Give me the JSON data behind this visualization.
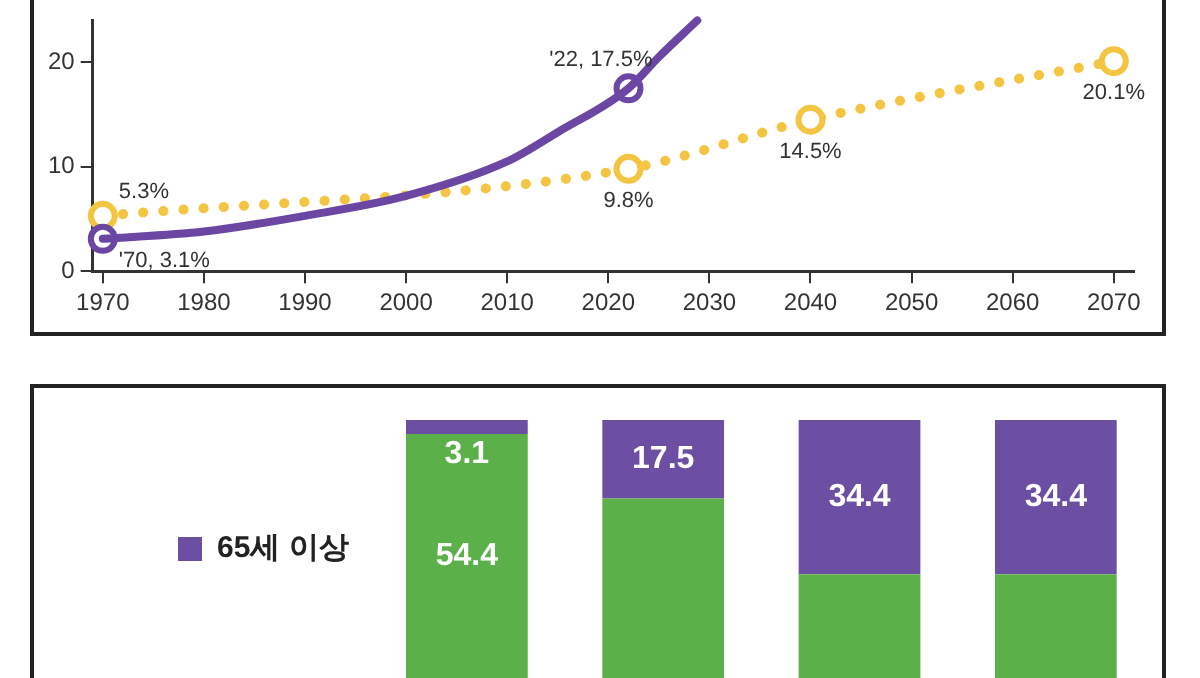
{
  "chart_data": [
    {
      "type": "line",
      "xlim": [
        1969,
        2072
      ],
      "xticks": [
        1970,
        1980,
        1990,
        2000,
        2010,
        2020,
        2030,
        2040,
        2050,
        2060,
        2070
      ],
      "ylim": [
        0,
        24
      ],
      "yticks": [
        0,
        10,
        20
      ],
      "grid": false,
      "legend": false,
      "series": [
        {
          "color": "#6b47a3",
          "line_style": "solid",
          "marker": "none",
          "x": [
            1970,
            1980,
            1990,
            2000,
            2010,
            2015,
            2022,
            2025,
            2028.8
          ],
          "values": [
            3.1,
            3.8,
            5.3,
            7.2,
            10.5,
            13.3,
            17.5,
            20.5,
            24
          ]
        },
        {
          "type": "scatter",
          "color": "#6b47a3",
          "marker": "circle",
          "x": [
            1970,
            2022
          ],
          "values": [
            3.1,
            17.5
          ],
          "value_labels": [
            "'70, 3.1%",
            "'22, 17.5%"
          ]
        },
        {
          "color": "#f4c542",
          "line_style": "dotted",
          "marker": "circle",
          "x": [
            1970,
            2022,
            2040,
            2070
          ],
          "values": [
            5.3,
            9.8,
            14.5,
            20.1
          ],
          "value_labels": [
            "5.3%",
            "9.8%",
            "14.5%",
            "20.1%"
          ]
        }
      ]
    },
    {
      "type": "bar",
      "stacked": true,
      "categories": [
        null,
        null,
        null,
        null
      ],
      "tick_labels": false,
      "grid": false,
      "legend": "left",
      "series": [
        {
          "color": "#5cb04a",
          "values": [
            54.4,
            40.0,
            23.1,
            23.1
          ],
          "value_labels": [
            "54.4",
            null,
            null,
            null
          ]
        },
        {
          "name": "65세 이상",
          "color": "#6c4ea3",
          "values": [
            3.1,
            17.5,
            34.4,
            34.4
          ],
          "value_labels": [
            "3.1",
            "17.5",
            "34.4",
            "34.4"
          ]
        }
      ]
    }
  ]
}
